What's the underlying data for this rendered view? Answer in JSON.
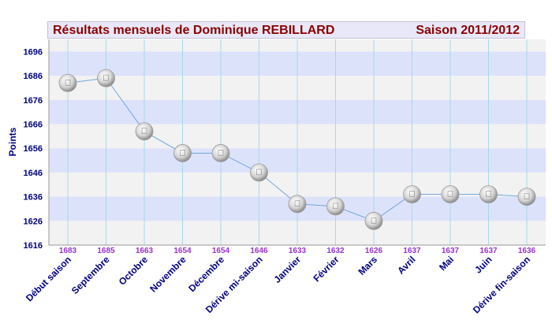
{
  "title": {
    "left": "Résultats mensuels de  Dominique REBILLARD",
    "right": "Saison 2011/2012"
  },
  "chart_data": {
    "type": "line",
    "ylabel": "Points",
    "ylim": [
      1616,
      1701
    ],
    "y_ticks": [
      1616,
      1626,
      1636,
      1646,
      1656,
      1666,
      1676,
      1686,
      1696
    ],
    "grid": true,
    "categories": [
      "Début saison",
      "Septembre",
      "Octobre",
      "Novembre",
      "Décembre",
      "Dérive mi-saison",
      "Janvier",
      "Février",
      "Mars",
      "Avril",
      "Mai",
      "Juin",
      "Dérive fin-saison"
    ],
    "values": [
      1683,
      1685,
      1663,
      1654,
      1654,
      1646,
      1633,
      1632,
      1626,
      1637,
      1637,
      1637,
      1636
    ],
    "colors": {
      "line": "#6fa8dc",
      "band_blue": "#dde2fb",
      "band_gray": "#f2f2f2",
      "vgrid": "#a8d8e8",
      "value_label": "#9933cc",
      "axis_text": "#000080",
      "title_text": "#8b0000"
    }
  }
}
